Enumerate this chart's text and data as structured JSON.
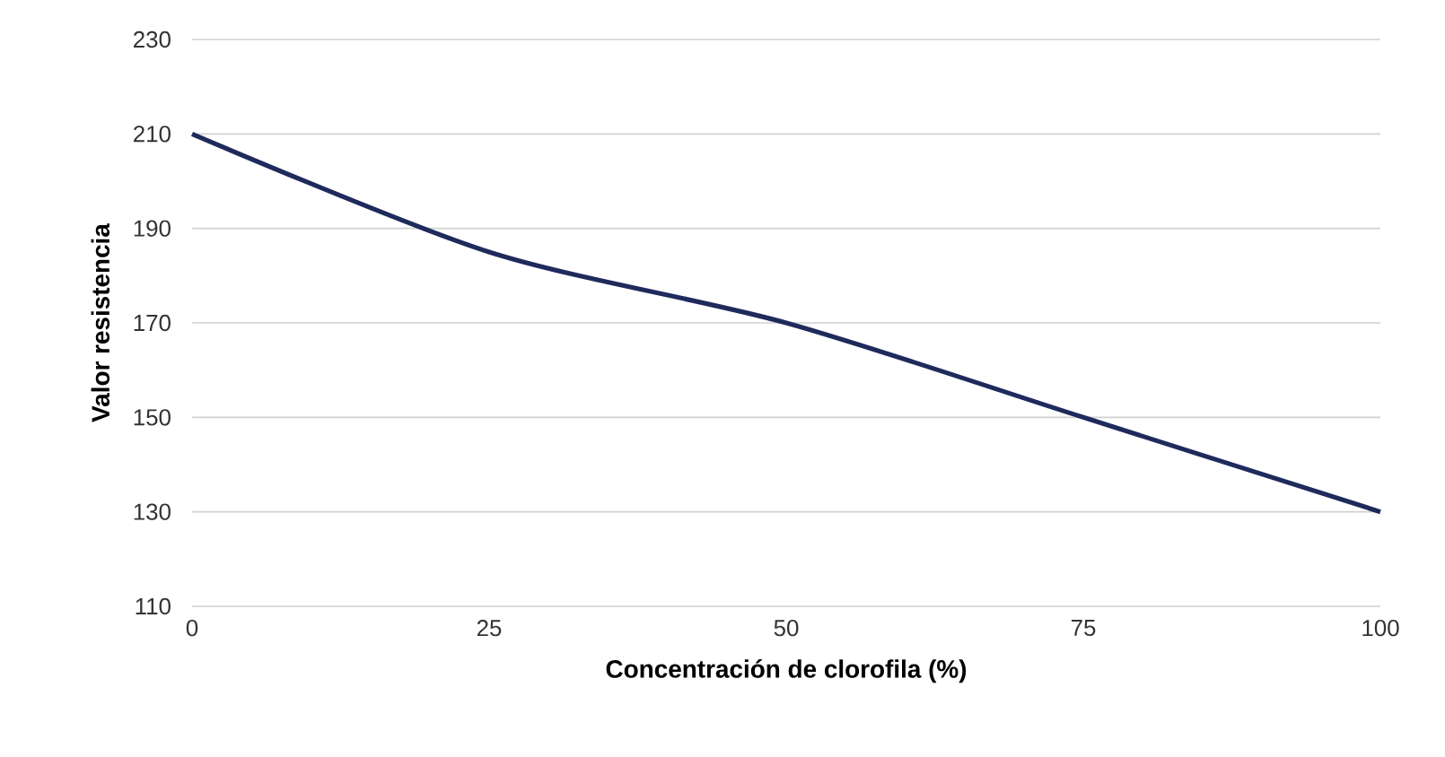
{
  "chart_data": {
    "type": "line",
    "xlabel": "Concentración de clorofila (%)",
    "ylabel": "Valor resistencia",
    "x": [
      0,
      25,
      50,
      75,
      100
    ],
    "series": [
      {
        "color": "#1f2a5c",
        "values": [
          210,
          185,
          170,
          150,
          130
        ]
      }
    ],
    "xlim": [
      0,
      100
    ],
    "xticks": [
      0,
      25,
      50,
      75,
      100
    ],
    "ylim": [
      110,
      230
    ],
    "yticks": [
      110,
      130,
      150,
      170,
      190,
      210,
      230
    ],
    "grid": "y",
    "marker": "none",
    "line_style": "solid"
  }
}
